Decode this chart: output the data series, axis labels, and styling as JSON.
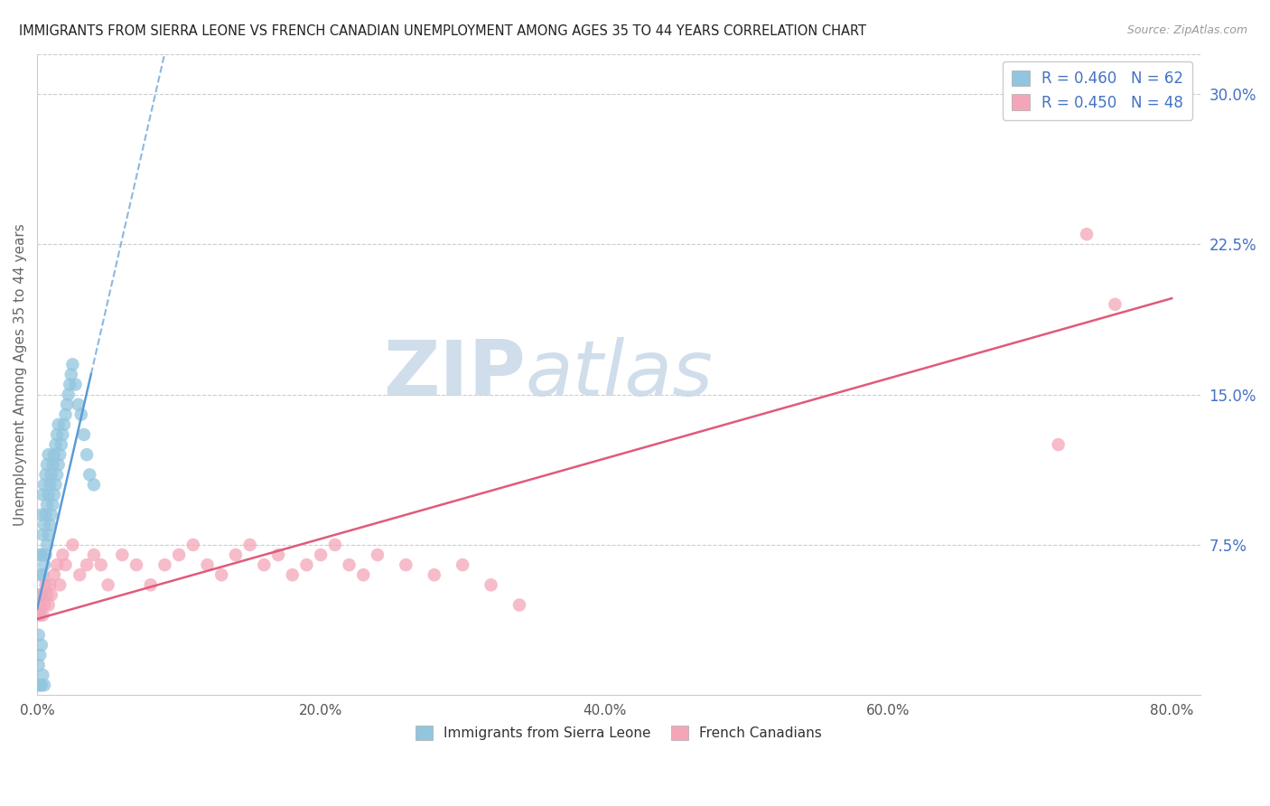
{
  "title": "IMMIGRANTS FROM SIERRA LEONE VS FRENCH CANADIAN UNEMPLOYMENT AMONG AGES 35 TO 44 YEARS CORRELATION CHART",
  "source": "Source: ZipAtlas.com",
  "ylabel": "Unemployment Among Ages 35 to 44 years",
  "xlabel_ticks": [
    "0.0%",
    "20.0%",
    "40.0%",
    "60.0%",
    "80.0%"
  ],
  "xlabel_vals": [
    0.0,
    0.2,
    0.4,
    0.6,
    0.8
  ],
  "ylabel_ticks_right": [
    "7.5%",
    "15.0%",
    "22.5%",
    "30.0%"
  ],
  "ylabel_vals_right": [
    0.075,
    0.15,
    0.225,
    0.3
  ],
  "ylim": [
    0.0,
    0.32
  ],
  "xlim": [
    0.0,
    0.82
  ],
  "legend_1_label": "Immigrants from Sierra Leone",
  "legend_2_label": "French Canadians",
  "R1": 0.46,
  "N1": 62,
  "R2": 0.45,
  "N2": 48,
  "color_blue": "#92c5de",
  "color_blue_line": "#5b9bd5",
  "color_pink": "#f4a6b8",
  "color_pink_line": "#e05a7a",
  "color_right_labels": "#4472c4",
  "watermark_zip": "ZIP",
  "watermark_atlas": "atlas",
  "blue_x": [
    0.001,
    0.001,
    0.002,
    0.002,
    0.002,
    0.003,
    0.003,
    0.003,
    0.004,
    0.004,
    0.004,
    0.005,
    0.005,
    0.005,
    0.006,
    0.006,
    0.006,
    0.007,
    0.007,
    0.007,
    0.008,
    0.008,
    0.008,
    0.009,
    0.009,
    0.01,
    0.01,
    0.011,
    0.011,
    0.012,
    0.012,
    0.013,
    0.013,
    0.014,
    0.014,
    0.015,
    0.015,
    0.016,
    0.017,
    0.018,
    0.019,
    0.02,
    0.021,
    0.022,
    0.023,
    0.024,
    0.025,
    0.027,
    0.029,
    0.031,
    0.033,
    0.035,
    0.037,
    0.04,
    0.001,
    0.001,
    0.002,
    0.002,
    0.003,
    0.003,
    0.004,
    0.005
  ],
  "blue_y": [
    0.03,
    0.05,
    0.04,
    0.06,
    0.07,
    0.05,
    0.07,
    0.09,
    0.06,
    0.08,
    0.1,
    0.065,
    0.085,
    0.105,
    0.07,
    0.09,
    0.11,
    0.075,
    0.095,
    0.115,
    0.08,
    0.1,
    0.12,
    0.085,
    0.105,
    0.09,
    0.11,
    0.095,
    0.115,
    0.1,
    0.12,
    0.105,
    0.125,
    0.11,
    0.13,
    0.115,
    0.135,
    0.12,
    0.125,
    0.13,
    0.135,
    0.14,
    0.145,
    0.15,
    0.155,
    0.16,
    0.165,
    0.155,
    0.145,
    0.14,
    0.13,
    0.12,
    0.11,
    0.105,
    0.005,
    0.015,
    0.005,
    0.02,
    0.025,
    0.005,
    0.01,
    0.005
  ],
  "pink_x": [
    0.001,
    0.002,
    0.003,
    0.004,
    0.005,
    0.006,
    0.007,
    0.008,
    0.009,
    0.01,
    0.012,
    0.014,
    0.016,
    0.018,
    0.02,
    0.025,
    0.03,
    0.035,
    0.04,
    0.045,
    0.05,
    0.06,
    0.07,
    0.08,
    0.09,
    0.1,
    0.11,
    0.12,
    0.13,
    0.14,
    0.15,
    0.16,
    0.17,
    0.18,
    0.19,
    0.2,
    0.21,
    0.22,
    0.23,
    0.24,
    0.26,
    0.28,
    0.3,
    0.32,
    0.34,
    0.72,
    0.74,
    0.76
  ],
  "pink_y": [
    0.04,
    0.045,
    0.05,
    0.04,
    0.045,
    0.055,
    0.05,
    0.045,
    0.055,
    0.05,
    0.06,
    0.065,
    0.055,
    0.07,
    0.065,
    0.075,
    0.06,
    0.065,
    0.07,
    0.065,
    0.055,
    0.07,
    0.065,
    0.055,
    0.065,
    0.07,
    0.075,
    0.065,
    0.06,
    0.07,
    0.075,
    0.065,
    0.07,
    0.06,
    0.065,
    0.07,
    0.075,
    0.065,
    0.06,
    0.07,
    0.065,
    0.06,
    0.065,
    0.055,
    0.045,
    0.125,
    0.23,
    0.195
  ],
  "blue_line_x0": 0.0,
  "blue_line_y0": 0.043,
  "blue_line_x1": 0.085,
  "blue_line_y1": 0.305,
  "pink_line_x0": 0.0,
  "pink_line_y0": 0.038,
  "pink_line_x1": 0.8,
  "pink_line_y1": 0.198
}
